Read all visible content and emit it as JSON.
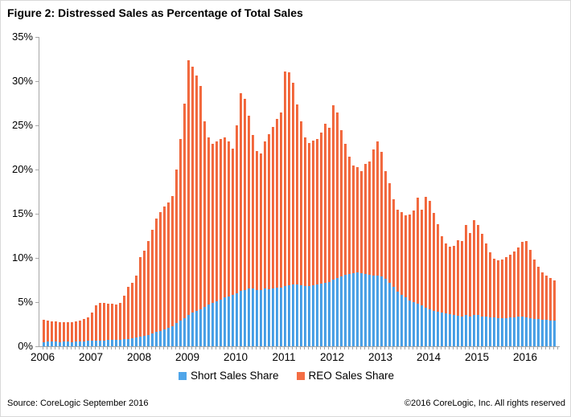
{
  "title": "Figure 2: Distressed Sales as Percentage of Total Sales",
  "footer": {
    "source": "Source: CoreLogic September 2016",
    "copyright": "©2016 CoreLogic, Inc. All rights reserved"
  },
  "colors": {
    "short_sales": "#4fa5e9",
    "reo_sales": "#f46d44",
    "axis": "#a6a6a6",
    "text": "#000000"
  },
  "chart_data": {
    "type": "bar",
    "stacked": true,
    "title": "Figure 2: Distressed Sales as Percentage of Total Sales",
    "xlabel": "",
    "ylabel": "",
    "ylim": [
      0,
      35
    ],
    "yticks": [
      0,
      5,
      10,
      15,
      20,
      25,
      30,
      35
    ],
    "ytick_suffix": "%",
    "grid": false,
    "legend_position": "bottom-center",
    "x_start_month": "2006-01",
    "x_end_month": "2016-08",
    "year_labels": [
      "2006",
      "2007",
      "2008",
      "2009",
      "2010",
      "2011",
      "2012",
      "2013",
      "2014",
      "2015",
      "2016"
    ],
    "series": [
      {
        "name": "Short Sales Share",
        "color": "#4fa5e9",
        "values": [
          0.5,
          0.5,
          0.5,
          0.5,
          0.5,
          0.5,
          0.5,
          0.5,
          0.5,
          0.55,
          0.55,
          0.6,
          0.6,
          0.6,
          0.65,
          0.65,
          0.7,
          0.7,
          0.7,
          0.75,
          0.8,
          0.85,
          0.9,
          1.0,
          1.1,
          1.2,
          1.3,
          1.45,
          1.6,
          1.75,
          1.9,
          2.1,
          2.3,
          2.6,
          2.9,
          3.2,
          3.5,
          3.8,
          4.0,
          4.2,
          4.5,
          4.7,
          4.9,
          5.1,
          5.3,
          5.5,
          5.6,
          5.8,
          6.0,
          6.3,
          6.4,
          6.5,
          6.5,
          6.4,
          6.4,
          6.5,
          6.5,
          6.5,
          6.6,
          6.6,
          6.8,
          6.9,
          7.0,
          7.0,
          6.9,
          6.8,
          6.8,
          6.9,
          7.0,
          7.1,
          7.2,
          7.3,
          7.5,
          7.7,
          7.9,
          8.1,
          8.2,
          8.3,
          8.4,
          8.3,
          8.2,
          8.1,
          8.0,
          8.0,
          7.9,
          7.6,
          7.2,
          6.7,
          6.2,
          5.8,
          5.5,
          5.2,
          5.0,
          4.8,
          4.6,
          4.4,
          4.2,
          4.0,
          3.9,
          3.8,
          3.7,
          3.6,
          3.5,
          3.5,
          3.4,
          3.5,
          3.4,
          3.5,
          3.5,
          3.4,
          3.4,
          3.3,
          3.3,
          3.2,
          3.2,
          3.2,
          3.3,
          3.3,
          3.4,
          3.4,
          3.3,
          3.2,
          3.1,
          3.1,
          3.0,
          3.0,
          2.9,
          2.9
        ]
      },
      {
        "name": "REO Sales Share",
        "color": "#f46d44",
        "values": [
          2.5,
          2.4,
          2.35,
          2.3,
          2.25,
          2.2,
          2.2,
          2.25,
          2.3,
          2.35,
          2.55,
          2.7,
          3.2,
          4.0,
          4.25,
          4.25,
          4.1,
          4.1,
          4.0,
          4.15,
          4.9,
          5.85,
          6.3,
          7.0,
          9.0,
          9.6,
          10.6,
          11.75,
          12.9,
          13.45,
          13.9,
          14.2,
          14.7,
          17.4,
          20.6,
          24.3,
          28.9,
          27.8,
          26.6,
          25.3,
          21.0,
          18.9,
          18.0,
          18.1,
          18.2,
          18.1,
          17.6,
          16.6,
          19.0,
          22.3,
          21.6,
          19.6,
          17.4,
          15.7,
          15.4,
          16.7,
          17.5,
          18.3,
          19.1,
          19.9,
          24.3,
          24.1,
          22.8,
          20.4,
          18.6,
          16.8,
          16.2,
          16.4,
          16.5,
          17.1,
          18.0,
          17.4,
          19.8,
          18.8,
          16.6,
          14.8,
          13.3,
          12.2,
          11.9,
          11.5,
          12.4,
          12.8,
          14.3,
          15.2,
          14.1,
          12.2,
          11.3,
          9.9,
          9.3,
          9.4,
          9.3,
          9.7,
          10.4,
          12.0,
          10.9,
          12.5,
          12.3,
          11.1,
          9.9,
          8.7,
          7.9,
          7.7,
          7.9,
          8.5,
          8.5,
          10.2,
          9.4,
          10.8,
          10.2,
          9.3,
          8.2,
          7.3,
          6.6,
          6.5,
          6.6,
          6.9,
          7.1,
          7.4,
          7.8,
          8.4,
          8.6,
          7.7,
          6.7,
          5.9,
          5.4,
          5.0,
          4.8,
          4.6
        ]
      }
    ]
  }
}
